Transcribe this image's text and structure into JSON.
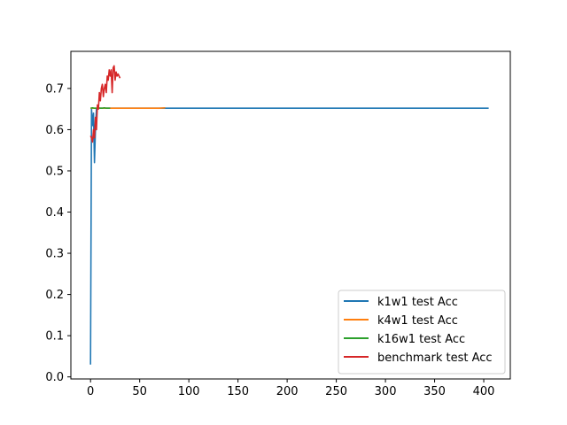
{
  "chart_data": {
    "type": "line",
    "title": "",
    "xlabel": "",
    "ylabel": "",
    "xlim": [
      -20,
      427
    ],
    "ylim": [
      -0.005,
      0.79
    ],
    "xticks": [
      0,
      50,
      100,
      150,
      200,
      250,
      300,
      350,
      400
    ],
    "yticks": [
      0.0,
      0.1,
      0.2,
      0.3,
      0.4,
      0.5,
      0.6,
      0.7
    ],
    "grid": false,
    "legend_position": "lower-right",
    "series": [
      {
        "name": "k1w1 test Acc",
        "color": "#1f77b4",
        "x": [
          0,
          1,
          2,
          3,
          4,
          5,
          6,
          7,
          8,
          10,
          20,
          50,
          100,
          200,
          300,
          405
        ],
        "y": [
          0.03,
          0.65,
          0.61,
          0.64,
          0.52,
          0.6,
          0.65,
          0.652,
          0.652,
          0.652,
          0.652,
          0.652,
          0.652,
          0.652,
          0.652,
          0.652
        ]
      },
      {
        "name": "k4w1 test Acc",
        "color": "#ff7f0e",
        "x": [
          0,
          10,
          20,
          30,
          40,
          50,
          60,
          70,
          76
        ],
        "y": [
          0.652,
          0.652,
          0.652,
          0.652,
          0.652,
          0.652,
          0.652,
          0.652,
          0.653
        ]
      },
      {
        "name": "k16w1 test Acc",
        "color": "#2ca02c",
        "x": [
          0,
          2,
          4,
          6,
          8,
          10,
          12,
          14,
          16,
          18,
          20
        ],
        "y": [
          0.652,
          0.653,
          0.652,
          0.652,
          0.653,
          0.652,
          0.652,
          0.653,
          0.652,
          0.652,
          0.652
        ]
      },
      {
        "name": "benchmark test Acc",
        "color": "#d62728",
        "x": [
          0,
          1,
          2,
          3,
          4,
          5,
          6,
          7,
          8,
          9,
          10,
          11,
          12,
          13,
          14,
          15,
          16,
          17,
          18,
          19,
          20,
          21,
          22,
          23,
          24,
          25,
          26,
          27,
          28,
          29,
          30
        ],
        "y": [
          0.585,
          0.58,
          0.57,
          0.6,
          0.58,
          0.63,
          0.6,
          0.66,
          0.65,
          0.69,
          0.67,
          0.7,
          0.71,
          0.68,
          0.7,
          0.71,
          0.69,
          0.73,
          0.72,
          0.745,
          0.73,
          0.745,
          0.69,
          0.75,
          0.755,
          0.72,
          0.74,
          0.73,
          0.735,
          0.73,
          0.725
        ]
      }
    ]
  }
}
